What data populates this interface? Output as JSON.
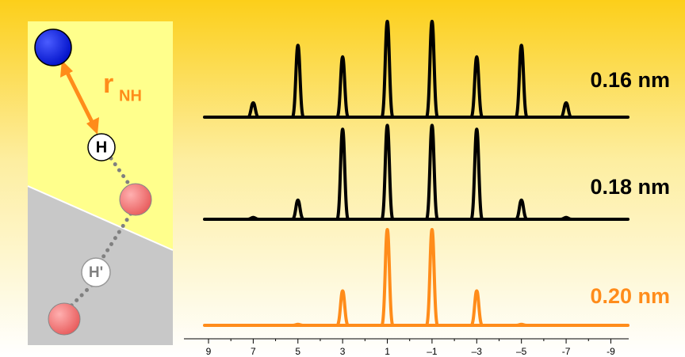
{
  "chart_data": {
    "type": "line",
    "x": [
      7,
      5,
      3,
      1,
      -1,
      -3,
      -5,
      -7
    ],
    "xlim": [
      10.1,
      -9.8
    ],
    "xticks": [
      9,
      7,
      5,
      3,
      1,
      {
        "value": -1,
        "label": "–1"
      },
      {
        "value": -3,
        "label": "–3"
      },
      {
        "value": -5,
        "label": "–5"
      },
      -7,
      -9
    ],
    "series": [
      {
        "name": "0.16 nm",
        "color": "#000000",
        "values": [
          0.15,
          0.75,
          0.63,
          1.0,
          1.0,
          0.63,
          0.75,
          0.15
        ]
      },
      {
        "name": "0.18 nm",
        "color": "#000000",
        "values": [
          0.02,
          0.2,
          0.94,
          0.98,
          0.98,
          0.94,
          0.2,
          0.02
        ]
      },
      {
        "name": "0.20 nm",
        "color": "#ff8c1a",
        "values": [
          0,
          0.01,
          0.36,
          1.0,
          1.0,
          0.36,
          0.01,
          0
        ]
      }
    ]
  },
  "diagram": {
    "distance_label": "r",
    "distance_subscript": "NH",
    "atom_labels": [
      "H",
      "H'"
    ]
  }
}
